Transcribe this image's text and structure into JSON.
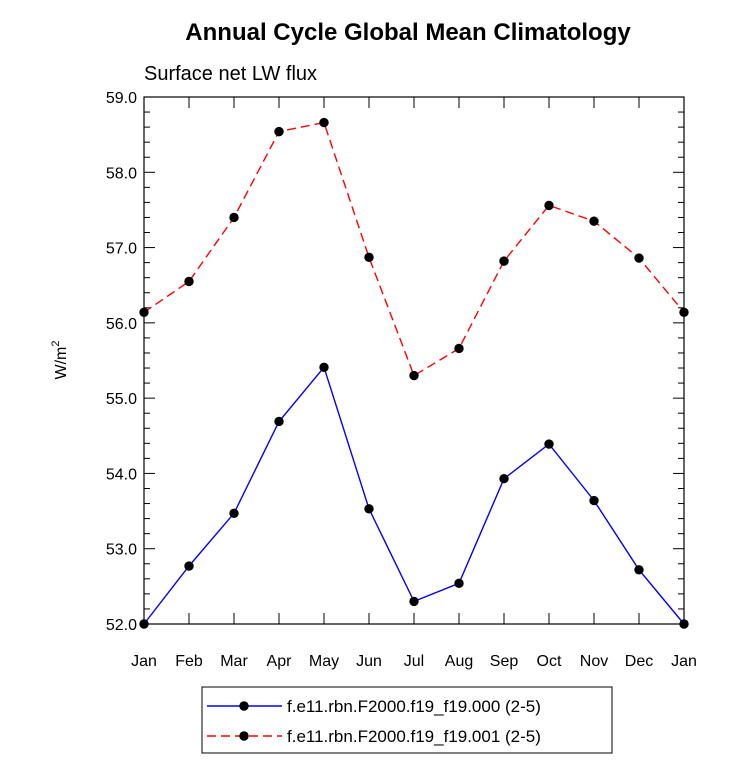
{
  "chart_data": {
    "type": "line",
    "title": "Annual Cycle Global Mean Climatology",
    "subtitle": "Surface net LW flux",
    "ylabel": "W/m",
    "ylabel_superscript": "2",
    "xlabel": "",
    "categories": [
      "Jan",
      "Feb",
      "Mar",
      "Apr",
      "May",
      "Jun",
      "Jul",
      "Aug",
      "Sep",
      "Oct",
      "Nov",
      "Dec",
      "Jan"
    ],
    "ylim": [
      52.0,
      59.0
    ],
    "yticks": [
      "52.0",
      "53.0",
      "54.0",
      "55.0",
      "56.0",
      "57.0",
      "58.0",
      "59.0"
    ],
    "legend_position": "bottom",
    "series": [
      {
        "name": "f.e11.rbn.F2000.f19_f19.000 (2-5)",
        "color": "#0000ff",
        "dash": "solid",
        "values": [
          52.0,
          52.77,
          53.47,
          54.69,
          55.41,
          53.53,
          52.3,
          52.54,
          53.93,
          54.39,
          53.64,
          52.72,
          52.0
        ]
      },
      {
        "name": "f.e11.rbn.F2000.f19_f19.001 (2-5)",
        "color": "#ff0000",
        "dash": "dashed",
        "values": [
          56.14,
          56.55,
          57.4,
          58.54,
          58.66,
          56.87,
          55.3,
          55.66,
          56.82,
          57.56,
          57.35,
          56.86,
          56.14
        ]
      }
    ]
  }
}
